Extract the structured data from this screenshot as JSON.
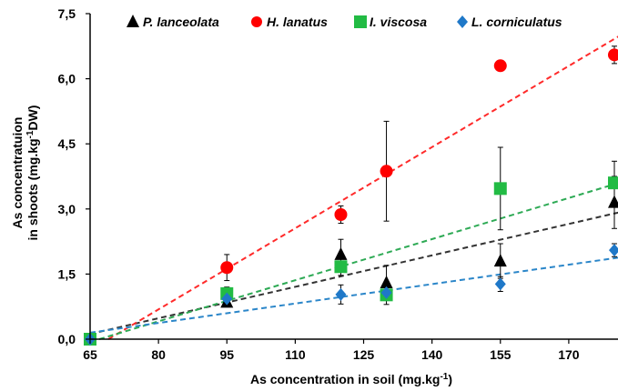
{
  "chart_data": {
    "type": "scatter",
    "xlabel": "As concentration in soil (mg.kg",
    "xlabel_sup": "-1",
    "xlabel_end": ")",
    "ylabel_line1": "As concentratuion",
    "ylabel_line2_pre": "in shoots (mg.kg",
    "ylabel_line2_sup": "-1",
    "ylabel_line2_post": "DW)",
    "xlim": [
      65,
      181
    ],
    "ylim": [
      0,
      7.5
    ],
    "x_ticks": [
      65,
      80,
      95,
      110,
      125,
      140,
      155,
      170
    ],
    "x_tick_labels": [
      "65",
      "80",
      "95",
      "110",
      "125",
      "140",
      "155",
      "170"
    ],
    "y_ticks": [
      0,
      1.5,
      3.0,
      4.5,
      6.0,
      7.5
    ],
    "y_tick_labels": [
      "0,0",
      "1,5",
      "3,0",
      "4,5",
      "6,0",
      "7,5"
    ],
    "grid": false,
    "legend_position": "top",
    "series": [
      {
        "name": "P. lanceolata",
        "color": "#000000",
        "marker": "triangle",
        "line_color": "#333333",
        "points": [
          {
            "x": 65,
            "y": 0.0,
            "err": 0.0
          },
          {
            "x": 95,
            "y": 0.85,
            "err": 0.1
          },
          {
            "x": 120,
            "y": 1.95,
            "err": 0.35
          },
          {
            "x": 130,
            "y": 1.3,
            "err": 0.4
          },
          {
            "x": 155,
            "y": 1.8,
            "err": 0.4
          },
          {
            "x": 180,
            "y": 3.15,
            "err": 0.6
          }
        ],
        "fit": [
          [
            65,
            0.12
          ],
          [
            181,
            2.92
          ]
        ]
      },
      {
        "name": "H. lanatus",
        "color": "#ff0000",
        "marker": "circle",
        "line_color": "#ff2a2a",
        "points": [
          {
            "x": 65,
            "y": 0.0,
            "err": 0.0
          },
          {
            "x": 95,
            "y": 1.65,
            "err": 0.3
          },
          {
            "x": 120,
            "y": 2.87,
            "err": 0.2
          },
          {
            "x": 130,
            "y": 3.87,
            "err": 1.15
          },
          {
            "x": 155,
            "y": 6.3,
            "err": 0.1
          },
          {
            "x": 180,
            "y": 6.55,
            "err": 0.2
          }
        ],
        "fit": [
          [
            69,
            0.0
          ],
          [
            181,
            6.98
          ]
        ]
      },
      {
        "name": "I. viscosa",
        "color": "#22bb44",
        "marker": "square",
        "line_color": "#2eaa55",
        "points": [
          {
            "x": 65,
            "y": 0.0,
            "err": 0.0
          },
          {
            "x": 95,
            "y": 1.05,
            "err": 0.15
          },
          {
            "x": 120,
            "y": 1.67,
            "err": 0.2
          },
          {
            "x": 130,
            "y": 1.02,
            "err": 0.22
          },
          {
            "x": 155,
            "y": 3.47,
            "err": 0.95
          },
          {
            "x": 180,
            "y": 3.6,
            "err": 0.5
          }
        ],
        "fit": [
          [
            67,
            0.0
          ],
          [
            181,
            3.6
          ]
        ]
      },
      {
        "name": "L. corniculatus",
        "color": "#1f78c8",
        "marker": "diamond",
        "line_color": "#2b86c9",
        "points": [
          {
            "x": 65,
            "y": 0.0,
            "err": 0.0
          },
          {
            "x": 95,
            "y": 0.93,
            "err": 0.1
          },
          {
            "x": 120,
            "y": 1.03,
            "err": 0.22
          },
          {
            "x": 130,
            "y": 1.07,
            "err": 0.15
          },
          {
            "x": 155,
            "y": 1.27,
            "err": 0.17
          },
          {
            "x": 180,
            "y": 2.05,
            "err": 0.15
          }
        ],
        "fit": [
          [
            65,
            0.15
          ],
          [
            181,
            1.88
          ]
        ]
      }
    ]
  }
}
